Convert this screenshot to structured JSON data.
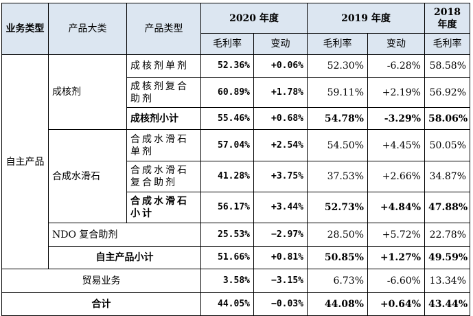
{
  "header": {
    "category": "业务类型",
    "product_group": "产品大类",
    "product_type": "产品类型",
    "y2020": "2020 年度",
    "y2019": "2019 年度",
    "y2018": "2018 年度",
    "gross_margin": "毛利率",
    "change": "变动"
  },
  "rows": {
    "own_products": "自主产品",
    "nucleating": "成核剂",
    "talc": "合成水滑石",
    "r1": {
      "type": "成核剂单剂",
      "m2020": "52.36%",
      "c2020": "+0.06%",
      "m2019": "52.30%",
      "c2019": "-6.28%",
      "m2018": "58.58%"
    },
    "r2": {
      "type": "成核剂复合助剂",
      "m2020": "60.89%",
      "c2020": "+1.78%",
      "m2019": "59.11%",
      "c2019": "+2.19%",
      "m2018": "56.92%"
    },
    "r3": {
      "type": "成核剂小计",
      "m2020": "55.46%",
      "c2020": "+0.68%",
      "m2019": "54.78%",
      "c2019": "-3.29%",
      "m2018": "58.06%"
    },
    "r4": {
      "type": "合成水滑石单剂",
      "m2020": "57.04%",
      "c2020": "+2.54%",
      "m2019": "54.50%",
      "c2019": "+4.45%",
      "m2018": "50.05%"
    },
    "r5": {
      "type": "合成水滑石复合助剂",
      "m2020": "41.28%",
      "c2020": "+3.75%",
      "m2019": "37.53%",
      "c2019": "+2.66%",
      "m2018": "34.87%"
    },
    "r6": {
      "type": "合成水滑石小计",
      "m2020": "56.17%",
      "c2020": "+3.44%",
      "m2019": "52.73%",
      "c2019": "+4.84%",
      "m2018": "47.88%"
    },
    "r7": {
      "type": "NDO 复合助剂",
      "m2020": "25.53%",
      "c2020": "−2.97%",
      "m2019": "28.50%",
      "c2019": "+5.72%",
      "m2018": "22.78%"
    },
    "r8": {
      "type": "自主产品小计",
      "m2020": "51.66%",
      "c2020": "+0.81%",
      "m2019": "50.85%",
      "c2019": "+1.27%",
      "m2018": "49.59%"
    },
    "r9": {
      "type": "贸易业务",
      "m2020": "3.58%",
      "c2020": "−3.15%",
      "m2019": "6.73%",
      "c2019": "-6.60%",
      "m2018": "13.34%"
    },
    "r10": {
      "type": "合计",
      "m2020": "44.05%",
      "c2020": "−0.03%",
      "m2019": "44.08%",
      "c2019": "+0.64%",
      "m2018": "43.44%"
    }
  }
}
